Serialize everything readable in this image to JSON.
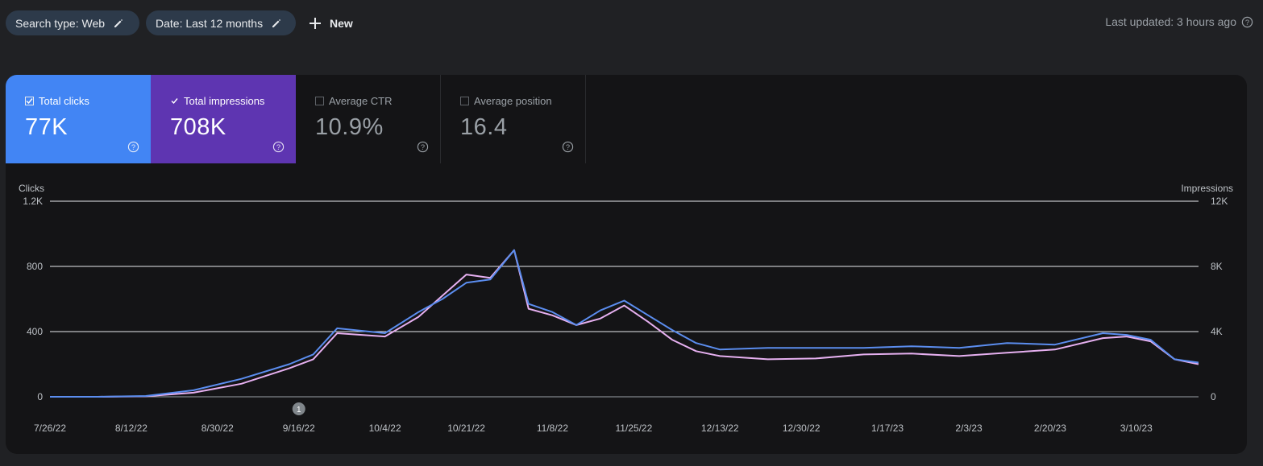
{
  "filters": {
    "search_type": "Search type: Web",
    "date": "Date: Last 12 months",
    "new_label": "New"
  },
  "status": {
    "last_updated": "Last updated: 3 hours ago"
  },
  "metrics": [
    {
      "label": "Total clicks",
      "value": "77K",
      "checked": true,
      "color": "#4285f4"
    },
    {
      "label": "Total impressions",
      "value": "708K",
      "checked": true,
      "color": "#5e35b1"
    },
    {
      "label": "Average CTR",
      "value": "10.9%",
      "checked": false
    },
    {
      "label": "Average position",
      "value": "16.4",
      "checked": false
    }
  ],
  "icons": {
    "pencil": "pencil-icon",
    "plus": "plus-icon",
    "help": "help-icon"
  },
  "chart_data": {
    "type": "line",
    "left_axis_label": "Clicks",
    "right_axis_label": "Impressions",
    "y_left_ticks": [
      "0",
      "400",
      "800",
      "1.2K"
    ],
    "y_right_ticks": [
      "0",
      "4K",
      "8K",
      "12K"
    ],
    "ylim_left": [
      0,
      1200
    ],
    "ylim_right": [
      0,
      12000
    ],
    "x_tick_labels": [
      "7/26/22",
      "8/12/22",
      "8/30/22",
      "9/16/22",
      "10/4/22",
      "10/21/22",
      "11/8/22",
      "11/25/22",
      "12/13/22",
      "12/30/22",
      "1/17/23",
      "2/3/23",
      "2/20/23",
      "3/10/23"
    ],
    "annotation": "1",
    "annotation_date": "9/16/22",
    "x": [
      "7/26/22",
      "8/5/22",
      "8/15/22",
      "8/25/22",
      "9/4/22",
      "9/14/22",
      "9/19/22",
      "9/24/22",
      "10/4/22",
      "10/11/22",
      "10/16/22",
      "10/21/22",
      "10/26/22",
      "10/31/22",
      "11/3/22",
      "11/8/22",
      "11/13/22",
      "11/18/22",
      "11/23/22",
      "11/28/22",
      "12/3/22",
      "12/8/22",
      "12/13/22",
      "12/23/22",
      "1/2/23",
      "1/12/23",
      "1/22/23",
      "2/1/23",
      "2/11/23",
      "2/21/23",
      "3/3/23",
      "3/8/23",
      "3/13/23",
      "3/18/23",
      "3/23/23"
    ],
    "series": [
      {
        "name": "Clicks",
        "color": "#5b8def",
        "values": [
          0,
          0,
          5,
          40,
          110,
          200,
          260,
          420,
          390,
          520,
          600,
          700,
          720,
          900,
          570,
          520,
          440,
          530,
          590,
          500,
          410,
          330,
          290,
          300,
          300,
          300,
          310,
          300,
          330,
          320,
          390,
          380,
          350,
          230,
          210
        ]
      },
      {
        "name": "Impressions",
        "color": "#e6b0f0",
        "values": [
          0,
          0,
          30,
          250,
          800,
          1750,
          2300,
          3900,
          3700,
          4900,
          6200,
          7500,
          7300,
          9000,
          5400,
          5000,
          4400,
          4800,
          5600,
          4600,
          3500,
          2800,
          2500,
          2300,
          2350,
          2600,
          2650,
          2500,
          2700,
          2900,
          3600,
          3700,
          3400,
          2300,
          2000
        ]
      }
    ]
  }
}
